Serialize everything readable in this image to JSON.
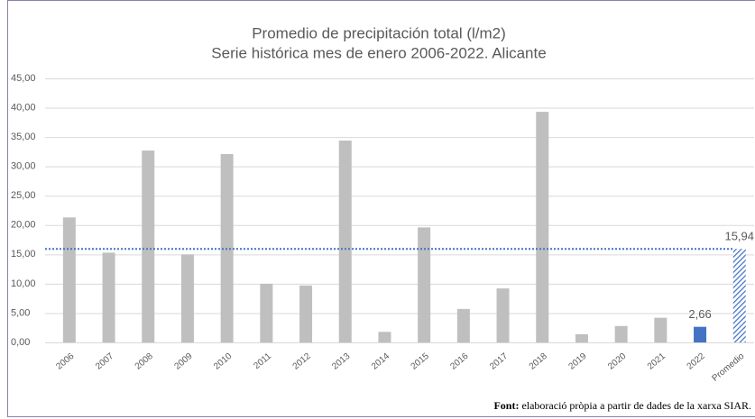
{
  "chart_data": {
    "type": "bar",
    "title": "Promedio de precipitación total (l/m2)",
    "subtitle": "Serie histórica mes de enero 2006-2022. Alicante",
    "categories": [
      "2006",
      "2007",
      "2008",
      "2009",
      "2010",
      "2011",
      "2012",
      "2013",
      "2014",
      "2015",
      "2016",
      "2017",
      "2018",
      "2019",
      "2020",
      "2021",
      "2022",
      "Promedio"
    ],
    "values": [
      21.3,
      15.3,
      32.7,
      15.0,
      32.1,
      10.0,
      9.7,
      34.4,
      1.8,
      19.6,
      5.7,
      9.2,
      39.3,
      1.4,
      2.8,
      4.2,
      2.66,
      15.94
    ],
    "value_labels": [
      null,
      null,
      null,
      null,
      null,
      null,
      null,
      null,
      null,
      null,
      null,
      null,
      null,
      null,
      null,
      null,
      "2,66",
      "15,94"
    ],
    "colors": [
      "#bfbfbf",
      "#bfbfbf",
      "#bfbfbf",
      "#bfbfbf",
      "#bfbfbf",
      "#bfbfbf",
      "#bfbfbf",
      "#bfbfbf",
      "#bfbfbf",
      "#bfbfbf",
      "#bfbfbf",
      "#bfbfbf",
      "#bfbfbf",
      "#bfbfbf",
      "#bfbfbf",
      "#bfbfbf",
      "#4472c4",
      "#4472c4"
    ],
    "hatched": [
      false,
      false,
      false,
      false,
      false,
      false,
      false,
      false,
      false,
      false,
      false,
      false,
      false,
      false,
      false,
      false,
      false,
      true
    ],
    "average_line_color": "#4472c4",
    "ylim": [
      0,
      45
    ],
    "yticks": [
      {
        "value": 0,
        "label": "0,00"
      },
      {
        "value": 5,
        "label": "5,00"
      },
      {
        "value": 10,
        "label": "10,00"
      },
      {
        "value": 15,
        "label": "15,00"
      },
      {
        "value": 20,
        "label": "20,00"
      },
      {
        "value": 25,
        "label": "25,00"
      },
      {
        "value": 30,
        "label": "30,00"
      },
      {
        "value": 35,
        "label": "35,00"
      },
      {
        "value": 40,
        "label": "40,00"
      },
      {
        "value": 45,
        "label": "45,00"
      }
    ],
    "grid": true,
    "source": {
      "label": "Font:",
      "text": "elaboració pròpia a partir de dades de la xarxa SIAR."
    }
  }
}
